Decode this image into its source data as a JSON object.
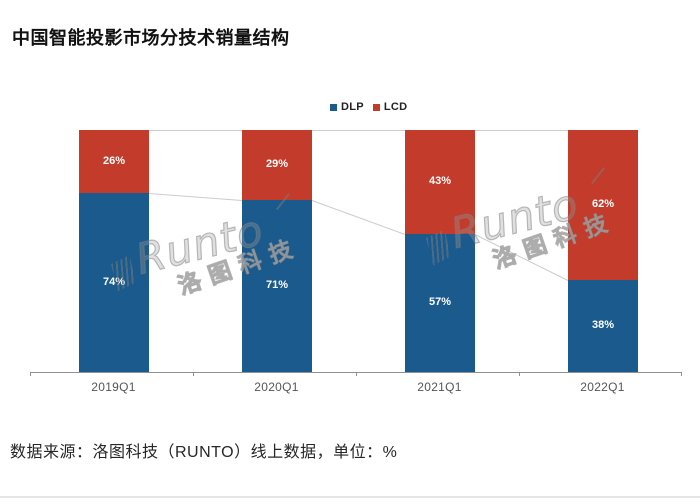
{
  "page": {
    "title": "中国智能投影市场分技术销量结构",
    "source_note": "数据来源：洛图科技（RUNTO）线上数据，单位：%"
  },
  "legend": {
    "items": [
      {
        "label": "DLP",
        "color": "#1a5a8d"
      },
      {
        "label": "LCD",
        "color": "#c33b2b"
      }
    ]
  },
  "watermark": {
    "brand": "Runto",
    "brand_cn": "洛图科技"
  },
  "colors": {
    "dlp_blue": "#1a5a8d",
    "lcd_red": "#c33b2b",
    "axis": "#909090",
    "connector": "#cccccc",
    "value_label": "#ffffff",
    "category_label": "#555555"
  },
  "chart_data": {
    "type": "bar",
    "stacked": true,
    "unit": "%",
    "title": "中国智能投影市场分技术销量结构",
    "categories": [
      "2019Q1",
      "2020Q1",
      "2021Q1",
      "2022Q1"
    ],
    "series": [
      {
        "name": "DLP",
        "color": "#1a5a8d",
        "values": [
          74,
          71,
          57,
          38
        ]
      },
      {
        "name": "LCD",
        "color": "#c33b2b",
        "values": [
          26,
          29,
          43,
          62
        ]
      }
    ],
    "ylim": [
      0,
      100
    ],
    "grid": false,
    "legend_position": "top-center",
    "value_labels": "inside-center",
    "connector_lines": true
  }
}
